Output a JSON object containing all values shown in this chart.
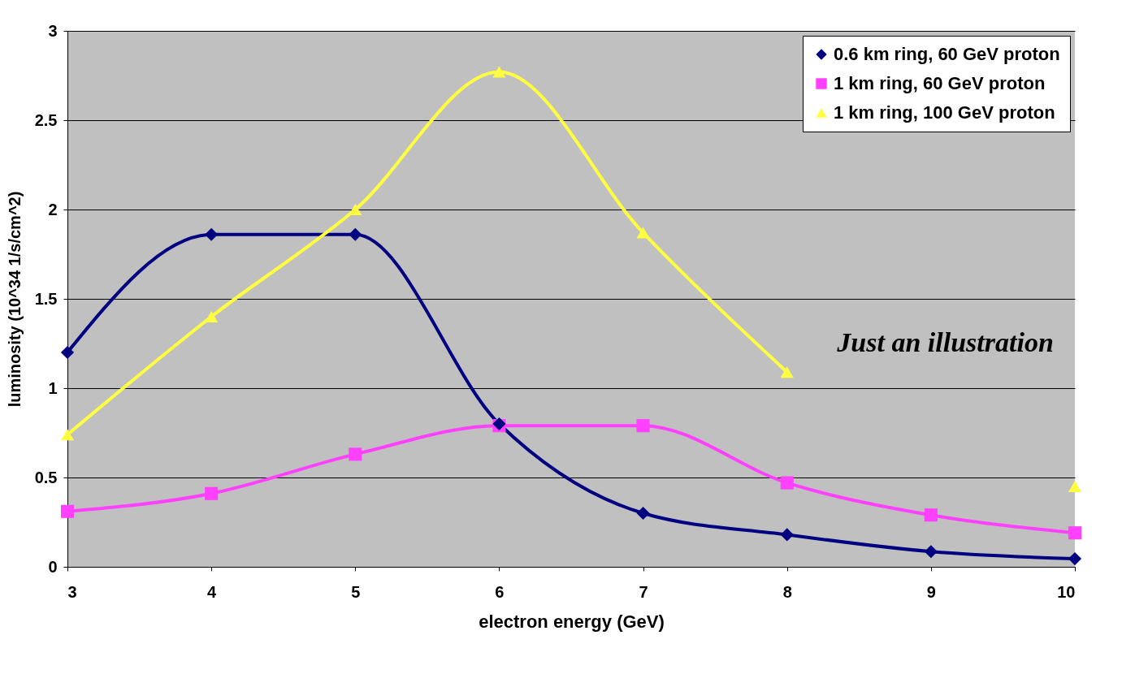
{
  "chart_data": {
    "type": "line",
    "xlabel": "electron energy  (GeV)",
    "ylabel": "luminosity  (10^34 1/s/cm^2)",
    "x": [
      3,
      4,
      5,
      6,
      7,
      8,
      9,
      10
    ],
    "series": [
      {
        "name": "0.6 km ring, 60 GeV proton",
        "color": "#000080",
        "marker": "diamond",
        "values": [
          1.2,
          1.86,
          1.86,
          0.8,
          0.3,
          0.18,
          0.085,
          0.045
        ]
      },
      {
        "name": "1 km ring, 60 GeV proton",
        "color": "#ff40ff",
        "marker": "square",
        "values": [
          0.31,
          0.41,
          0.63,
          0.79,
          0.79,
          0.47,
          0.29,
          0.19
        ]
      },
      {
        "name": "1 km ring, 100 GeV proton",
        "color": "#ffff40",
        "marker": "triangle",
        "values": [
          0.74,
          1.4,
          2.0,
          2.77,
          1.87,
          1.09,
          null,
          0.45
        ]
      }
    ],
    "xlim": [
      3,
      10
    ],
    "xticks": [
      3,
      4,
      5,
      6,
      7,
      8,
      9,
      10
    ],
    "ylim": [
      0,
      3
    ],
    "yticks": [
      0,
      0.5,
      1,
      1.5,
      2,
      2.5,
      3
    ],
    "grid": "y",
    "legend": "top right",
    "line_style": "solid",
    "annotations": [
      "Just an illustration"
    ]
  }
}
